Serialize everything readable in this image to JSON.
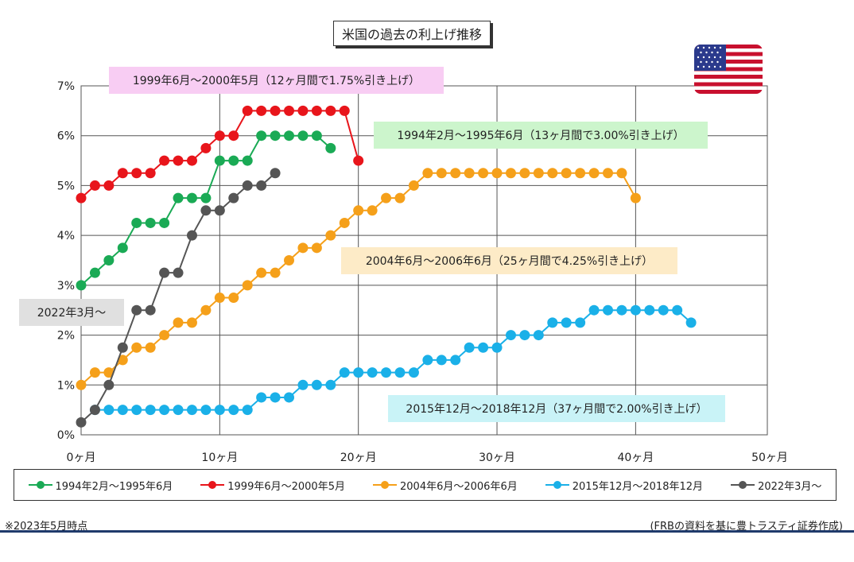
{
  "title": "米国の過去の利上げ推移",
  "note": "※2023年5月時点",
  "source": "(FRBの資料を基に豊トラスティ証券作成)",
  "flag": "us-flag-icon",
  "chart_data": {
    "type": "line",
    "title": "米国の過去の利上げ推移",
    "x_ticks": [
      0,
      10,
      20,
      30,
      40,
      50
    ],
    "x_tick_labels": [
      "0ヶ月",
      "10ヶ月",
      "20ヶ月",
      "30ヶ月",
      "40ヶ月",
      "50ヶ月"
    ],
    "y_ticks": [
      0,
      1,
      2,
      3,
      4,
      5,
      6,
      7
    ],
    "y_tick_labels": [
      "0%",
      "1%",
      "2%",
      "3%",
      "4%",
      "5%",
      "6%",
      "7%"
    ],
    "xlim": [
      0,
      49.5
    ],
    "ylim": [
      0,
      7
    ],
    "grid": true,
    "legend_position": "bottom",
    "series": [
      {
        "name": "1994年2月～1995年6月",
        "color": "#1aaa55",
        "annotation": "1994年2月～1995年6月（13ヶ月間で3.00%引き上げ）",
        "annotation_bg": "#ccf5cc",
        "x": [
          0,
          1,
          2,
          3,
          4,
          5,
          6,
          7,
          8,
          9,
          10,
          11,
          12,
          13,
          14,
          15,
          16,
          17,
          18
        ],
        "y": [
          3.0,
          3.25,
          3.5,
          3.75,
          4.25,
          4.25,
          4.25,
          4.75,
          4.75,
          4.75,
          5.5,
          5.5,
          5.5,
          6.0,
          6.0,
          6.0,
          6.0,
          6.0,
          5.75
        ]
      },
      {
        "name": "1999年6月～2000年5月",
        "color": "#e8151b",
        "annotation": "1999年6月～2000年5月（12ヶ月間で1.75%引き上げ）",
        "annotation_bg": "#f8cdf3",
        "x": [
          0,
          1,
          2,
          3,
          4,
          5,
          6,
          7,
          8,
          9,
          10,
          11,
          12,
          13,
          14,
          15,
          16,
          17,
          18,
          19,
          20
        ],
        "y": [
          4.75,
          5.0,
          5.0,
          5.25,
          5.25,
          5.25,
          5.5,
          5.5,
          5.5,
          5.75,
          6.0,
          6.0,
          6.5,
          6.5,
          6.5,
          6.5,
          6.5,
          6.5,
          6.5,
          6.5,
          5.5
        ]
      },
      {
        "name": "2004年6月～2006年6月",
        "color": "#f5a01a",
        "annotation": "2004年6月～2006年6月（25ヶ月間で4.25%引き上げ）",
        "annotation_bg": "#fdebc7",
        "x": [
          0,
          1,
          2,
          3,
          4,
          5,
          6,
          7,
          8,
          9,
          10,
          11,
          12,
          13,
          14,
          15,
          16,
          17,
          18,
          19,
          20,
          21,
          22,
          23,
          24,
          25,
          26,
          27,
          28,
          29,
          30,
          31,
          32,
          33,
          34,
          35,
          36,
          37,
          38,
          39,
          40
        ],
        "y": [
          1.0,
          1.25,
          1.25,
          1.5,
          1.75,
          1.75,
          2.0,
          2.25,
          2.25,
          2.5,
          2.75,
          2.75,
          3.0,
          3.25,
          3.25,
          3.5,
          3.75,
          3.75,
          4.0,
          4.25,
          4.5,
          4.5,
          4.75,
          4.75,
          5.0,
          5.25,
          5.25,
          5.25,
          5.25,
          5.25,
          5.25,
          5.25,
          5.25,
          5.25,
          5.25,
          5.25,
          5.25,
          5.25,
          5.25,
          5.25,
          4.75
        ]
      },
      {
        "name": "2015年12月～2018年12月",
        "color": "#1ab0e8",
        "annotation": "2015年12月～2018年12月（37ヶ月間で2.00%引き上げ）",
        "annotation_bg": "#c9f3f7",
        "x": [
          1,
          2,
          3,
          4,
          5,
          6,
          7,
          8,
          9,
          10,
          11,
          12,
          13,
          14,
          15,
          16,
          17,
          18,
          19,
          20,
          21,
          22,
          23,
          24,
          25,
          26,
          27,
          28,
          29,
          30,
          31,
          32,
          33,
          34,
          35,
          36,
          37,
          38,
          39,
          40,
          41,
          42,
          43,
          44
        ],
        "y": [
          0.5,
          0.5,
          0.5,
          0.5,
          0.5,
          0.5,
          0.5,
          0.5,
          0.5,
          0.5,
          0.5,
          0.5,
          0.75,
          0.75,
          0.75,
          1.0,
          1.0,
          1.0,
          1.25,
          1.25,
          1.25,
          1.25,
          1.25,
          1.25,
          1.5,
          1.5,
          1.5,
          1.75,
          1.75,
          1.75,
          2.0,
          2.0,
          2.0,
          2.25,
          2.25,
          2.25,
          2.5,
          2.5,
          2.5,
          2.5,
          2.5,
          2.5,
          2.5,
          2.25
        ]
      },
      {
        "name": "2022年3月～",
        "color": "#555555",
        "annotation": "2022年3月～",
        "annotation_bg": "#e0e0e0",
        "x": [
          0,
          1,
          2,
          3,
          4,
          5,
          6,
          7,
          8,
          9,
          10,
          11,
          12,
          13,
          14
        ],
        "y": [
          0.25,
          0.5,
          1.0,
          1.75,
          2.5,
          2.5,
          3.25,
          3.25,
          4.0,
          4.5,
          4.5,
          4.75,
          5.0,
          5.0,
          5.25
        ]
      }
    ]
  }
}
